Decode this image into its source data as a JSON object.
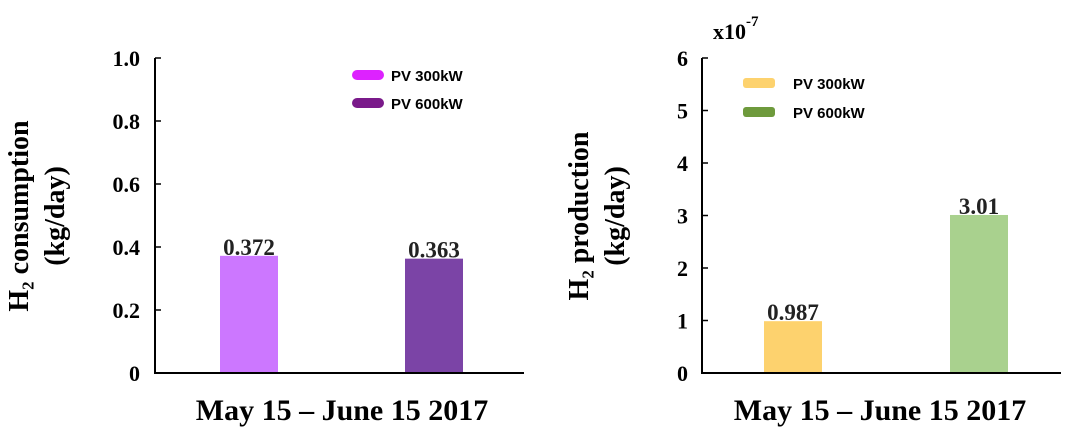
{
  "chart_data": [
    {
      "type": "bar",
      "xlabel": "May 15 – June 15 2017",
      "ylabel_line1": "H₂ consumption",
      "ylabel_line2": "(kg/day)",
      "ylim": [
        0,
        1.0
      ],
      "yticks": [
        "0",
        "0.2",
        "0.4",
        "0.6",
        "0.8",
        "1.0"
      ],
      "legend_position": "top-right",
      "series": [
        {
          "name": "PV 300kW",
          "value": 0.372,
          "label": "0.372",
          "color": "#cc77ff",
          "legend_color": "#dd22ff"
        },
        {
          "name": "PV 600kW",
          "value": 0.363,
          "label": "0.363",
          "color": "#7b44a6",
          "legend_color": "#7a1a8a"
        }
      ]
    },
    {
      "type": "bar",
      "xlabel": "May 15 – June 15 2017",
      "ylabel_line1": "H₂ production",
      "ylabel_line2": "(kg/day)",
      "ylim": [
        0,
        6
      ],
      "yticks": [
        "0",
        "1",
        "2",
        "3",
        "4",
        "5",
        "6"
      ],
      "multiplier": "x10",
      "multiplier_exp": "-7",
      "legend_position": "top-left",
      "series": [
        {
          "name": "PV 300kW",
          "value": 0.987,
          "label": "0.987",
          "color": "#fdd26e",
          "legend_color": "#fdd26e"
        },
        {
          "name": "PV 600kW",
          "value": 3.01,
          "label": "3.01",
          "color": "#a9d18e",
          "legend_color": "#6e9a3c"
        }
      ]
    }
  ]
}
